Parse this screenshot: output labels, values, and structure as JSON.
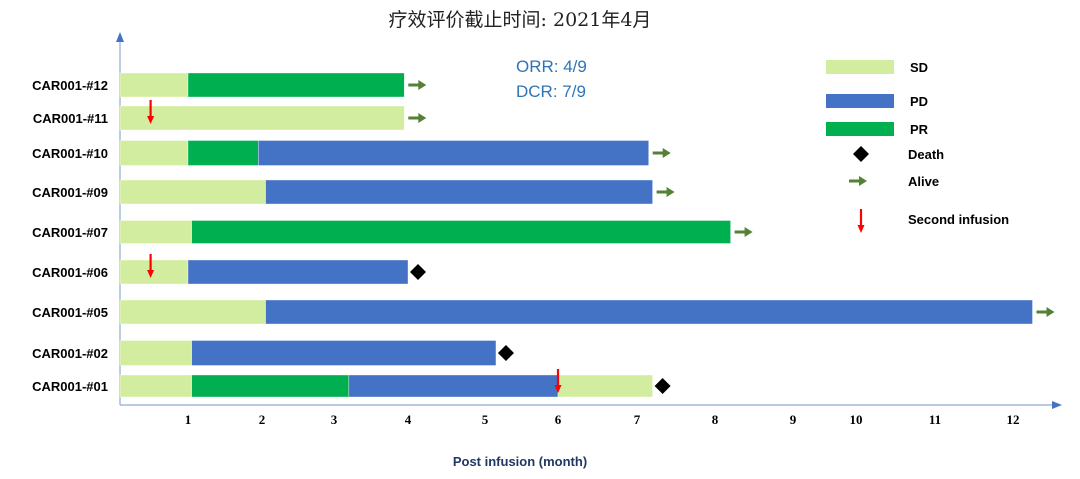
{
  "chart_data": {
    "type": "bar",
    "orientation": "horizontal",
    "stacked": true,
    "title": "疗效评价截止时间: 2021年4月",
    "xlabel": "Post infusion (month)",
    "ylabel": "",
    "xlim": [
      0,
      12.4
    ],
    "x_ticks": [
      "1",
      "2",
      "3",
      "4",
      "5",
      "6",
      "7",
      "8",
      "9",
      "10",
      "11",
      "12"
    ],
    "grid": false,
    "legend_position": "top-right",
    "annotations": [
      "ORR: 4/9",
      "DCR: 7/9"
    ],
    "colors": {
      "SD": "#d3eda0",
      "PD": "#4472c4",
      "PR": "#00b050",
      "Death": "#000000",
      "Alive": "#548235",
      "Second infusion": "#ff0000"
    },
    "legend": [
      {
        "key": "SD",
        "label": "SD",
        "marker": "bar"
      },
      {
        "key": "PD",
        "label": "PD",
        "marker": "bar"
      },
      {
        "key": "PR",
        "label": "PR",
        "marker": "bar"
      },
      {
        "key": "Death",
        "label": "Death",
        "marker": "diamond"
      },
      {
        "key": "Alive",
        "label": "Alive",
        "marker": "arrow-right"
      },
      {
        "key": "Second infusion",
        "label": "Second  infusion",
        "marker": "arrow-down"
      }
    ],
    "patients": [
      {
        "id": "CAR001-#12",
        "segments": [
          {
            "status": "SD",
            "start": 0,
            "end": 1.0
          },
          {
            "status": "PR",
            "start": 1.0,
            "end": 3.95
          }
        ],
        "outcome": "Alive",
        "second_infusion": null
      },
      {
        "id": "CAR001-#11",
        "segments": [
          {
            "status": "SD",
            "start": 0,
            "end": 3.95
          }
        ],
        "outcome": "Alive",
        "second_infusion": 0.45
      },
      {
        "id": "CAR001-#10",
        "segments": [
          {
            "status": "SD",
            "start": 0,
            "end": 1.0
          },
          {
            "status": "PR",
            "start": 1.0,
            "end": 1.95
          },
          {
            "status": "PD",
            "start": 1.95,
            "end": 7.15
          }
        ],
        "outcome": "Alive",
        "second_infusion": null
      },
      {
        "id": "CAR001-#09",
        "segments": [
          {
            "status": "SD",
            "start": 0,
            "end": 2.05
          },
          {
            "status": "PD",
            "start": 2.05,
            "end": 7.2
          }
        ],
        "outcome": "Alive",
        "second_infusion": null
      },
      {
        "id": "CAR001-#07",
        "segments": [
          {
            "status": "SD",
            "start": 0,
            "end": 1.05
          },
          {
            "status": "PR",
            "start": 1.05,
            "end": 8.2
          }
        ],
        "outcome": "Alive",
        "second_infusion": null
      },
      {
        "id": "CAR001-#06",
        "segments": [
          {
            "status": "SD",
            "start": 0,
            "end": 1.0
          },
          {
            "status": "PD",
            "start": 1.0,
            "end": 4.0
          }
        ],
        "outcome": "Death",
        "second_infusion": 0.45
      },
      {
        "id": "CAR001-#05",
        "segments": [
          {
            "status": "SD",
            "start": 0,
            "end": 2.05
          },
          {
            "status": "PD",
            "start": 2.05,
            "end": 12.25
          }
        ],
        "outcome": "Alive",
        "second_infusion": null
      },
      {
        "id": "CAR001-#02",
        "segments": [
          {
            "status": "SD",
            "start": 0,
            "end": 1.05
          },
          {
            "status": "PD",
            "start": 1.05,
            "end": 5.15
          }
        ],
        "outcome": "Death",
        "second_infusion": null
      },
      {
        "id": "CAR001-#01",
        "segments": [
          {
            "status": "SD",
            "start": 0,
            "end": 1.05
          },
          {
            "status": "PR",
            "start": 1.05,
            "end": 3.2
          },
          {
            "status": "PD",
            "start": 3.2,
            "end": 6.0
          },
          {
            "status": "SD",
            "start": 6.0,
            "end": 7.2
          }
        ],
        "outcome": "Death",
        "second_infusion": 6.0
      }
    ]
  }
}
